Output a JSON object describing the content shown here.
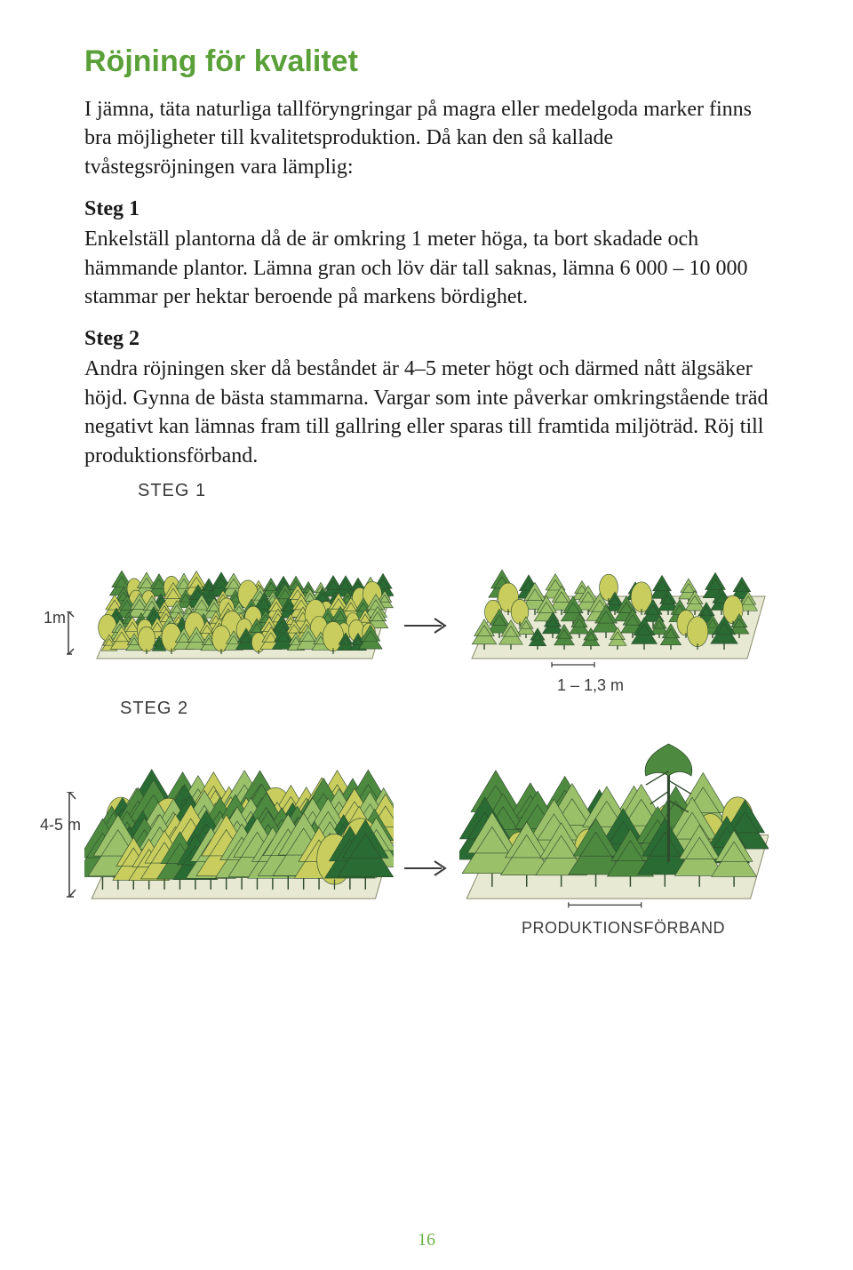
{
  "title": "Röjning för kvalitet",
  "intro": "I jämna, täta naturliga tallföryngringar på magra eller medelgoda marker finns bra möjligheter till kvalitetsproduktion. Då kan den så kallade tvåstegsröjningen vara lämplig:",
  "step1_label": "Steg 1",
  "step1_body": "Enkelställ plantorna då de är omkring 1 meter höga, ta bort skadade och hämmande plantor. Lämna gran och löv där tall saknas, lämna 6 000 – 10 000 stammar per hektar beroende på markens bördighet.",
  "step2_label": "Steg 2",
  "step2_body": "Andra röjningen sker då beståndet är 4–5 meter högt och därmed nått älgsäker höjd. Gynna de bästa stammarna. Vargar som inte påverkar omkringstående träd negativt kan lämnas fram till gallring eller sparas till framtida miljöträd. Röj till produktionsförband.",
  "illus": {
    "row1_label": "STEG 1",
    "row1_height_label": "1m",
    "row1_spacing_label": "1 – 1,3 m",
    "row2_label": "STEG 2",
    "row2_height_label": "4-5 m",
    "row2_spacing_label": "PRODUKTIONSFÖRBAND",
    "colors": {
      "tree_dark": "#2a6b33",
      "tree_mid": "#4d8a3f",
      "tree_light": "#9bc06a",
      "tree_yellow": "#c8cd5e",
      "outline": "#2f4a2d",
      "ground": "#e7e9d3",
      "ground_edge": "#8a8c6b",
      "label_color": "#3a3a3a"
    }
  },
  "page_number": "16"
}
